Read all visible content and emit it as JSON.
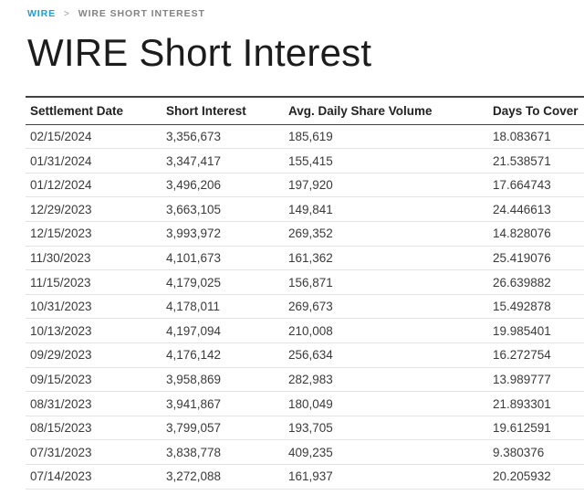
{
  "breadcrumb": {
    "link_label": "WIRE",
    "separator": ">",
    "current_label": "WIRE SHORT INTEREST"
  },
  "page": {
    "title": "WIRE Short Interest"
  },
  "colors": {
    "link_blue": "#1e9cd7"
  },
  "table": {
    "columns": [
      "Settlement Date",
      "Short Interest",
      "Avg. Daily Share Volume",
      "Days To Cover"
    ],
    "rows": [
      [
        "02/15/2024",
        "3,356,673",
        "185,619",
        "18.083671"
      ],
      [
        "01/31/2024",
        "3,347,417",
        "155,415",
        "21.538571"
      ],
      [
        "01/12/2024",
        "3,496,206",
        "197,920",
        "17.664743"
      ],
      [
        "12/29/2023",
        "3,663,105",
        "149,841",
        "24.446613"
      ],
      [
        "12/15/2023",
        "3,993,972",
        "269,352",
        "14.828076"
      ],
      [
        "11/30/2023",
        "4,101,673",
        "161,362",
        "25.419076"
      ],
      [
        "11/15/2023",
        "4,179,025",
        "156,871",
        "26.639882"
      ],
      [
        "10/31/2023",
        "4,178,011",
        "269,673",
        "15.492878"
      ],
      [
        "10/13/2023",
        "4,197,094",
        "210,008",
        "19.985401"
      ],
      [
        "09/29/2023",
        "4,176,142",
        "256,634",
        "16.272754"
      ],
      [
        "09/15/2023",
        "3,958,869",
        "282,983",
        "13.989777"
      ],
      [
        "08/31/2023",
        "3,941,867",
        "180,049",
        "21.893301"
      ],
      [
        "08/15/2023",
        "3,799,057",
        "193,705",
        "19.612591"
      ],
      [
        "07/31/2023",
        "3,838,778",
        "409,235",
        "9.380376"
      ],
      [
        "07/14/2023",
        "3,272,088",
        "161,937",
        "20.205932"
      ]
    ]
  }
}
